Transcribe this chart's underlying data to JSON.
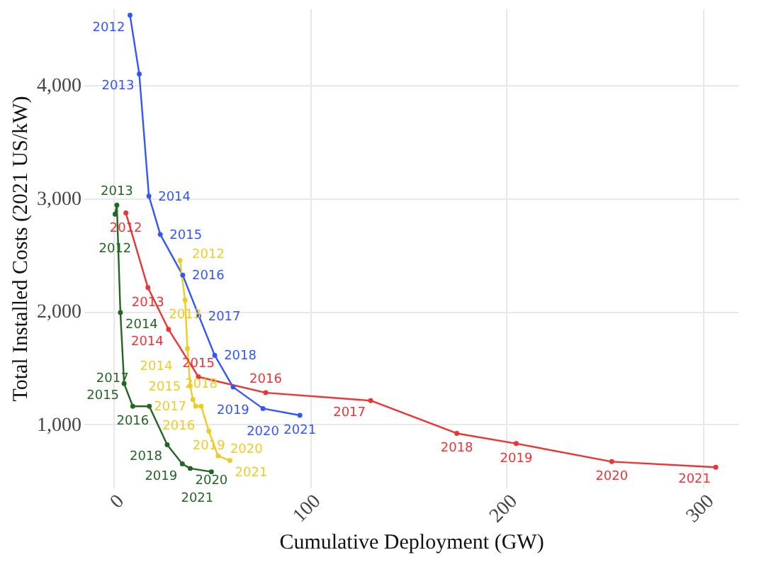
{
  "chart_data": {
    "type": "line",
    "xlabel": "Cumulative Deployment (GW)",
    "ylabel": "Total Installed Costs (2021 US/kW)",
    "xlim": [
      -15,
      318
    ],
    "ylim": [
      440,
      4680
    ],
    "xticks": [
      0,
      100,
      200,
      300
    ],
    "yticks": [
      {
        "value": 1000,
        "label": "1,000"
      },
      {
        "value": 2000,
        "label": "2,000"
      },
      {
        "value": 3000,
        "label": "3,000"
      },
      {
        "value": 4000,
        "label": "4,000"
      }
    ],
    "grid": true,
    "marker": "circle",
    "line_style": "solid",
    "series": [
      {
        "color": "#3355ff",
        "x": [
          8.6,
          13.3,
          18.2,
          24,
          35.4,
          43.6,
          51.7,
          61,
          76.2,
          95
        ],
        "values": [
          4620,
          4100,
          3020,
          2680,
          2320,
          1960,
          1610,
          1330,
          1140,
          1080
        ]
      },
      {
        "color": "#ee3333",
        "x": [
          6.5,
          17.7,
          28.2,
          43.4,
          77.6,
          131,
          174.8,
          205,
          253.6,
          306.5
        ],
        "values": [
          2870,
          2210,
          1840,
          1420,
          1280,
          1210,
          920,
          830,
          670,
          620
        ]
      },
      {
        "color": "#eecc22",
        "x": [
          34,
          36.6,
          37.8,
          39.2,
          40.6,
          42,
          44.8,
          48.7,
          53.4,
          59.4
        ],
        "values": [
          2450,
          2100,
          1670,
          1340,
          1220,
          1160,
          1160,
          940,
          720,
          680
        ]
      },
      {
        "color": "#226622",
        "x": [
          1,
          1.9,
          3.7,
          5.6,
          10,
          18.4,
          27.5,
          35.2,
          39.2,
          50
        ],
        "values": [
          2860,
          2940,
          1990,
          1360,
          1160,
          1160,
          820,
          650,
          610,
          580
        ]
      }
    ],
    "annotations": [
      {
        "text": "2012",
        "x": 8.6,
        "y": 4620
      },
      {
        "text": "2013",
        "x": 13.3,
        "y": 4100
      },
      {
        "text": "2014",
        "x": 18.2,
        "y": 3020
      },
      {
        "text": "2015",
        "x": 24,
        "y": 2680
      },
      {
        "text": "2016",
        "x": 35.4,
        "y": 2320
      },
      {
        "text": "2017",
        "x": 43.6,
        "y": 1960
      },
      {
        "text": "2018",
        "x": 51.7,
        "y": 1610
      },
      {
        "text": "2019",
        "x": 61,
        "y": 1330
      },
      {
        "text": "2020",
        "x": 76.2,
        "y": 1140
      },
      {
        "text": "2021",
        "x": 95,
        "y": 1080
      },
      {
        "text": "2012",
        "x": 6.5,
        "y": 2870
      },
      {
        "text": "2013",
        "x": 17.7,
        "y": 2210
      },
      {
        "text": "2014",
        "x": 28.2,
        "y": 1840
      },
      {
        "text": "2015",
        "x": 43.4,
        "y": 1420
      },
      {
        "text": "2016",
        "x": 77.6,
        "y": 1280
      },
      {
        "text": "2017",
        "x": 131,
        "y": 1210
      },
      {
        "text": "2018",
        "x": 174.8,
        "y": 920
      },
      {
        "text": "2019",
        "x": 205,
        "y": 830
      },
      {
        "text": "2020",
        "x": 253.6,
        "y": 670
      },
      {
        "text": "2021",
        "x": 306.5,
        "y": 620
      },
      {
        "text": "2012",
        "x": 34,
        "y": 2450
      },
      {
        "text": "2013",
        "x": 36.6,
        "y": 2100
      },
      {
        "text": "2014",
        "x": 37.8,
        "y": 1670
      },
      {
        "text": "2015",
        "x": 39.2,
        "y": 1340
      },
      {
        "text": "2016",
        "x": 40.6,
        "y": 1220
      },
      {
        "text": "2017",
        "x": 42,
        "y": 1160
      },
      {
        "text": "2018",
        "x": 44.8,
        "y": 1160
      },
      {
        "text": "2019",
        "x": 48.7,
        "y": 940
      },
      {
        "text": "2020",
        "x": 53.4,
        "y": 720
      },
      {
        "text": "2021",
        "x": 59.4,
        "y": 680
      },
      {
        "text": "2012",
        "x": 1,
        "y": 2860
      },
      {
        "text": "2013",
        "x": 1.9,
        "y": 2940
      },
      {
        "text": "2014",
        "x": 3.7,
        "y": 1990
      },
      {
        "text": "2015",
        "x": 5.6,
        "y": 1360
      },
      {
        "text": "2016",
        "x": 10,
        "y": 1160
      },
      {
        "text": "2017",
        "x": 18.4,
        "y": 1160
      },
      {
        "text": "2018",
        "x": 27.5,
        "y": 820
      },
      {
        "text": "2019",
        "x": 35.2,
        "y": 650
      },
      {
        "text": "2020",
        "x": 39.2,
        "y": 610
      },
      {
        "text": "2021",
        "x": 50,
        "y": 580
      }
    ]
  }
}
